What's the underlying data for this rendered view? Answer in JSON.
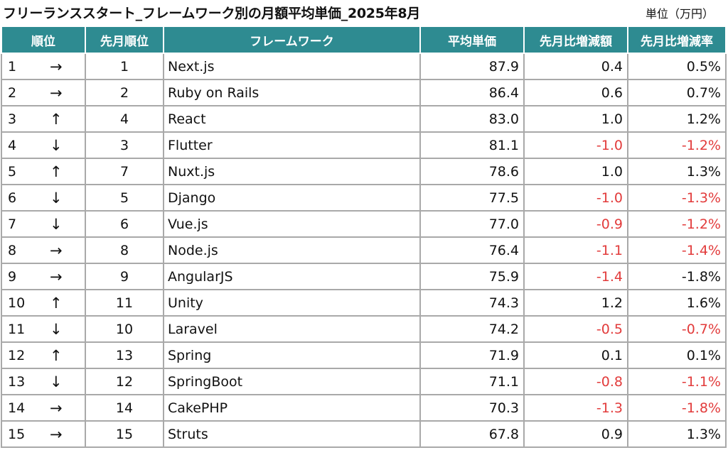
{
  "header": {
    "title": "フリーランススタート_フレームワーク別の月額平均単価_2025年8月",
    "unit": "単位（万円）"
  },
  "table": {
    "columns": [
      "順位",
      "先月順位",
      "フレームワーク",
      "平均単価",
      "先月比増減額",
      "先月比増減率"
    ],
    "rows": [
      {
        "rank": "1",
        "trend": "→",
        "prev": "1",
        "name": "Next.js",
        "price": "87.9",
        "diff": "0.4",
        "rate": "0.5%",
        "negative": false
      },
      {
        "rank": "2",
        "trend": "→",
        "prev": "2",
        "name": "Ruby on Rails",
        "price": "86.4",
        "diff": "0.6",
        "rate": "0.7%",
        "negative": false
      },
      {
        "rank": "3",
        "trend": "↑",
        "prev": "4",
        "name": "React",
        "price": "83.0",
        "diff": "1.0",
        "rate": "1.2%",
        "negative": false
      },
      {
        "rank": "4",
        "trend": "↓",
        "prev": "3",
        "name": "Flutter",
        "price": "81.1",
        "diff": "-1.0",
        "rate": "-1.2%",
        "negative": true
      },
      {
        "rank": "5",
        "trend": "↑",
        "prev": "7",
        "name": "Nuxt.js",
        "price": "78.6",
        "diff": "1.0",
        "rate": "1.3%",
        "negative": false
      },
      {
        "rank": "6",
        "trend": "↓",
        "prev": "5",
        "name": "Django",
        "price": "77.5",
        "diff": "-1.0",
        "rate": "-1.3%",
        "negative": true
      },
      {
        "rank": "7",
        "trend": "↓",
        "prev": "6",
        "name": "Vue.js",
        "price": "77.0",
        "diff": "-0.9",
        "rate": "-1.2%",
        "negative": true
      },
      {
        "rank": "8",
        "trend": "→",
        "prev": "8",
        "name": "Node.js",
        "price": "76.4",
        "diff": "-1.1",
        "rate": "-1.4%",
        "negative": true
      },
      {
        "rank": "9",
        "trend": "→",
        "prev": "9",
        "name": "AngularJS",
        "price": "75.9",
        "diff": "-1.4",
        "rate": "-1.8%",
        "negative": true,
        "rate_negative": false
      },
      {
        "rank": "10",
        "trend": "↑",
        "prev": "11",
        "name": "Unity",
        "price": "74.3",
        "diff": "1.2",
        "rate": "1.6%",
        "negative": false
      },
      {
        "rank": "11",
        "trend": "↓",
        "prev": "10",
        "name": "Laravel",
        "price": "74.2",
        "diff": "-0.5",
        "rate": "-0.7%",
        "negative": true
      },
      {
        "rank": "12",
        "trend": "↑",
        "prev": "13",
        "name": "Spring",
        "price": "71.9",
        "diff": "0.1",
        "rate": "0.1%",
        "negative": false
      },
      {
        "rank": "13",
        "trend": "↓",
        "prev": "12",
        "name": "SpringBoot",
        "price": "71.1",
        "diff": "-0.8",
        "rate": "-1.1%",
        "negative": true
      },
      {
        "rank": "14",
        "trend": "→",
        "prev": "14",
        "name": "CakePHP",
        "price": "70.3",
        "diff": "-1.3",
        "rate": "-1.8%",
        "negative": true
      },
      {
        "rank": "15",
        "trend": "→",
        "prev": "15",
        "name": "Struts",
        "price": "67.8",
        "diff": "0.9",
        "rate": "1.3%",
        "negative": false
      }
    ]
  },
  "colors": {
    "header_bg": "#2e8b91",
    "negative_text": "#e23b3b"
  }
}
